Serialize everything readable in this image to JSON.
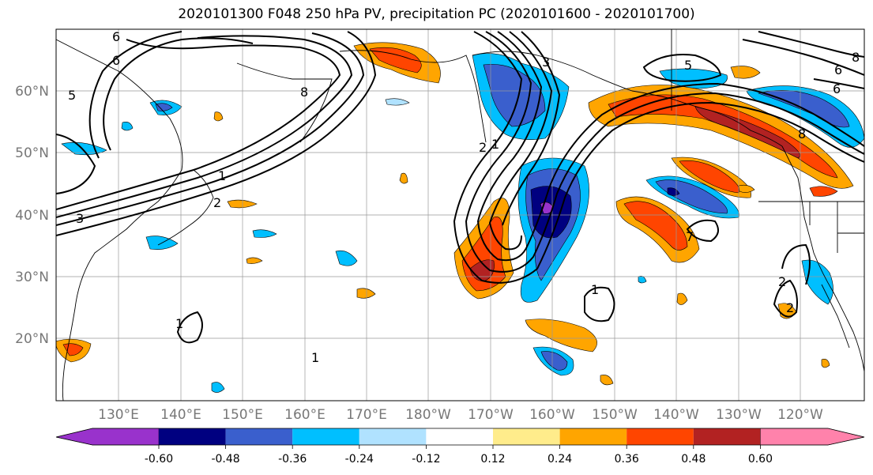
{
  "title": "2020101300 F048 250 hPa PV, precipitation PC (2020101600 - 2020101700)",
  "lat_labels": [
    "60°N",
    "50°N",
    "40°N",
    "30°N",
    "20°N"
  ],
  "lat_values": [
    60,
    50,
    40,
    30,
    20
  ],
  "lon_labels": [
    "130°E",
    "140°E",
    "150°E",
    "160°E",
    "170°E",
    "180°W",
    "170°W",
    "160°W",
    "150°W",
    "140°W",
    "130°W",
    "120°W"
  ],
  "lon_values": [
    130,
    140,
    150,
    160,
    170,
    180,
    190,
    200,
    210,
    220,
    230,
    240
  ],
  "extent": {
    "lon_min": 120,
    "lon_max": 250.5,
    "lat_min": 10,
    "lat_max": 70
  },
  "colorbar": {
    "levels": [
      "-0.60",
      "-0.48",
      "-0.36",
      "-0.24",
      "-0.12",
      "0.12",
      "0.24",
      "0.36",
      "0.48",
      "0.60"
    ],
    "colors": [
      "#9932cc",
      "#000080",
      "#3a5fcd",
      "#00bfff",
      "#b0e2ff",
      "#ffffff",
      "#ffec8b",
      "#ffa500",
      "#ff4500",
      "#b22222",
      "#ff82ab"
    ]
  },
  "contour_labels": [
    "6",
    "6",
    "5",
    "8",
    "1",
    "2",
    "3",
    "1",
    "2",
    "3",
    "5",
    "6",
    "6",
    "8",
    "8",
    "1",
    "2",
    "1",
    "1",
    "2",
    "7"
  ]
}
